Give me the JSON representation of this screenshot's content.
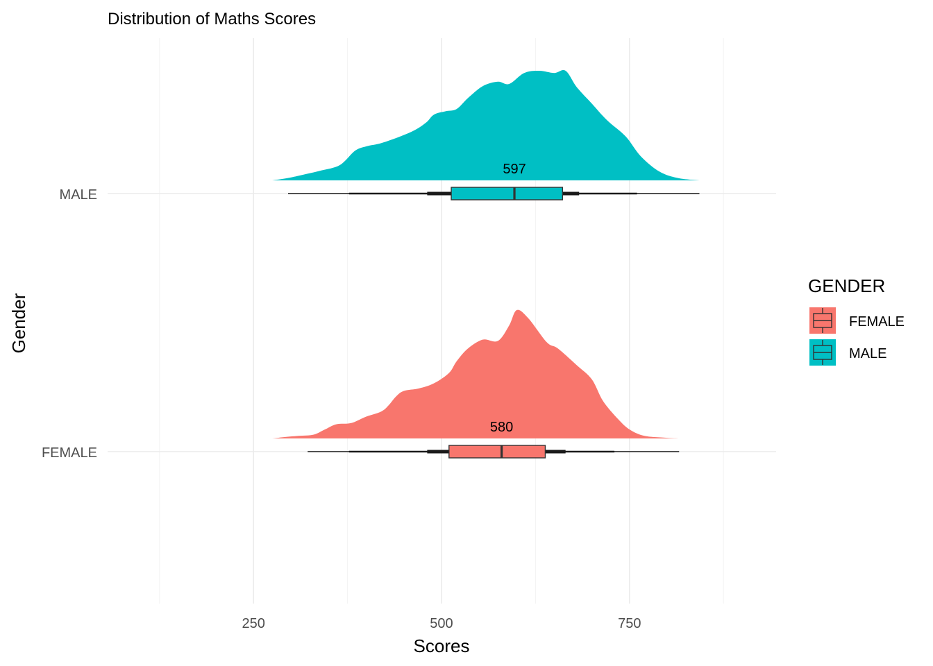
{
  "chart_data": {
    "type": "raincloud",
    "title": "Distribution of Maths Scores",
    "xlabel": "Scores",
    "ylabel": "Gender",
    "xlim": [
      56,
      945
    ],
    "x_ticks": [
      250,
      500,
      750
    ],
    "x_tick_labels": [
      "250",
      "500",
      "750"
    ],
    "categories": [
      "FEMALE",
      "MALE"
    ],
    "legend": {
      "title": "GENDER",
      "position": "right",
      "entries": [
        "FEMALE",
        "MALE"
      ]
    },
    "grid": true,
    "series": [
      {
        "name": "FEMALE",
        "color": "#F8766D",
        "median": 580,
        "median_label": "580",
        "box": {
          "q1": 510,
          "q3": 638
        },
        "interval_thick": [
          481,
          665
        ],
        "interval_mid": [
          377,
          730
        ],
        "whiskers": [
          322,
          816
        ],
        "density": [
          [
            275,
            0.0
          ],
          [
            290,
            0.01
          ],
          [
            310,
            0.02
          ],
          [
            330,
            0.03
          ],
          [
            345,
            0.07
          ],
          [
            360,
            0.11
          ],
          [
            380,
            0.12
          ],
          [
            400,
            0.17
          ],
          [
            420,
            0.21
          ],
          [
            430,
            0.26
          ],
          [
            440,
            0.33
          ],
          [
            450,
            0.37
          ],
          [
            470,
            0.39
          ],
          [
            490,
            0.43
          ],
          [
            510,
            0.51
          ],
          [
            520,
            0.6
          ],
          [
            535,
            0.7
          ],
          [
            555,
            0.77
          ],
          [
            575,
            0.76
          ],
          [
            590,
            0.88
          ],
          [
            600,
            1.0
          ],
          [
            615,
            0.94
          ],
          [
            640,
            0.75
          ],
          [
            655,
            0.7
          ],
          [
            680,
            0.57
          ],
          [
            700,
            0.46
          ],
          [
            715,
            0.29
          ],
          [
            735,
            0.15
          ],
          [
            750,
            0.07
          ],
          [
            770,
            0.02
          ],
          [
            800,
            0.005
          ],
          [
            816,
            0.0
          ]
        ]
      },
      {
        "name": "MALE",
        "color": "#00BFC4",
        "median": 597,
        "median_label": "597",
        "box": {
          "q1": 513,
          "q3": 661
        },
        "interval_thick": [
          481,
          683
        ],
        "interval_mid": [
          377,
          760
        ],
        "whiskers": [
          296,
          843
        ],
        "density": [
          [
            275,
            0.0
          ],
          [
            295,
            0.02
          ],
          [
            315,
            0.05
          ],
          [
            340,
            0.09
          ],
          [
            365,
            0.14
          ],
          [
            385,
            0.27
          ],
          [
            400,
            0.31
          ],
          [
            420,
            0.34
          ],
          [
            445,
            0.4
          ],
          [
            465,
            0.46
          ],
          [
            480,
            0.53
          ],
          [
            490,
            0.6
          ],
          [
            505,
            0.63
          ],
          [
            520,
            0.65
          ],
          [
            535,
            0.75
          ],
          [
            555,
            0.86
          ],
          [
            575,
            0.9
          ],
          [
            590,
            0.88
          ],
          [
            610,
            0.98
          ],
          [
            630,
            1.0
          ],
          [
            650,
            0.98
          ],
          [
            665,
            1.0
          ],
          [
            680,
            0.85
          ],
          [
            700,
            0.7
          ],
          [
            720,
            0.55
          ],
          [
            745,
            0.4
          ],
          [
            765,
            0.22
          ],
          [
            790,
            0.08
          ],
          [
            815,
            0.02
          ],
          [
            843,
            0.0
          ]
        ]
      }
    ]
  }
}
